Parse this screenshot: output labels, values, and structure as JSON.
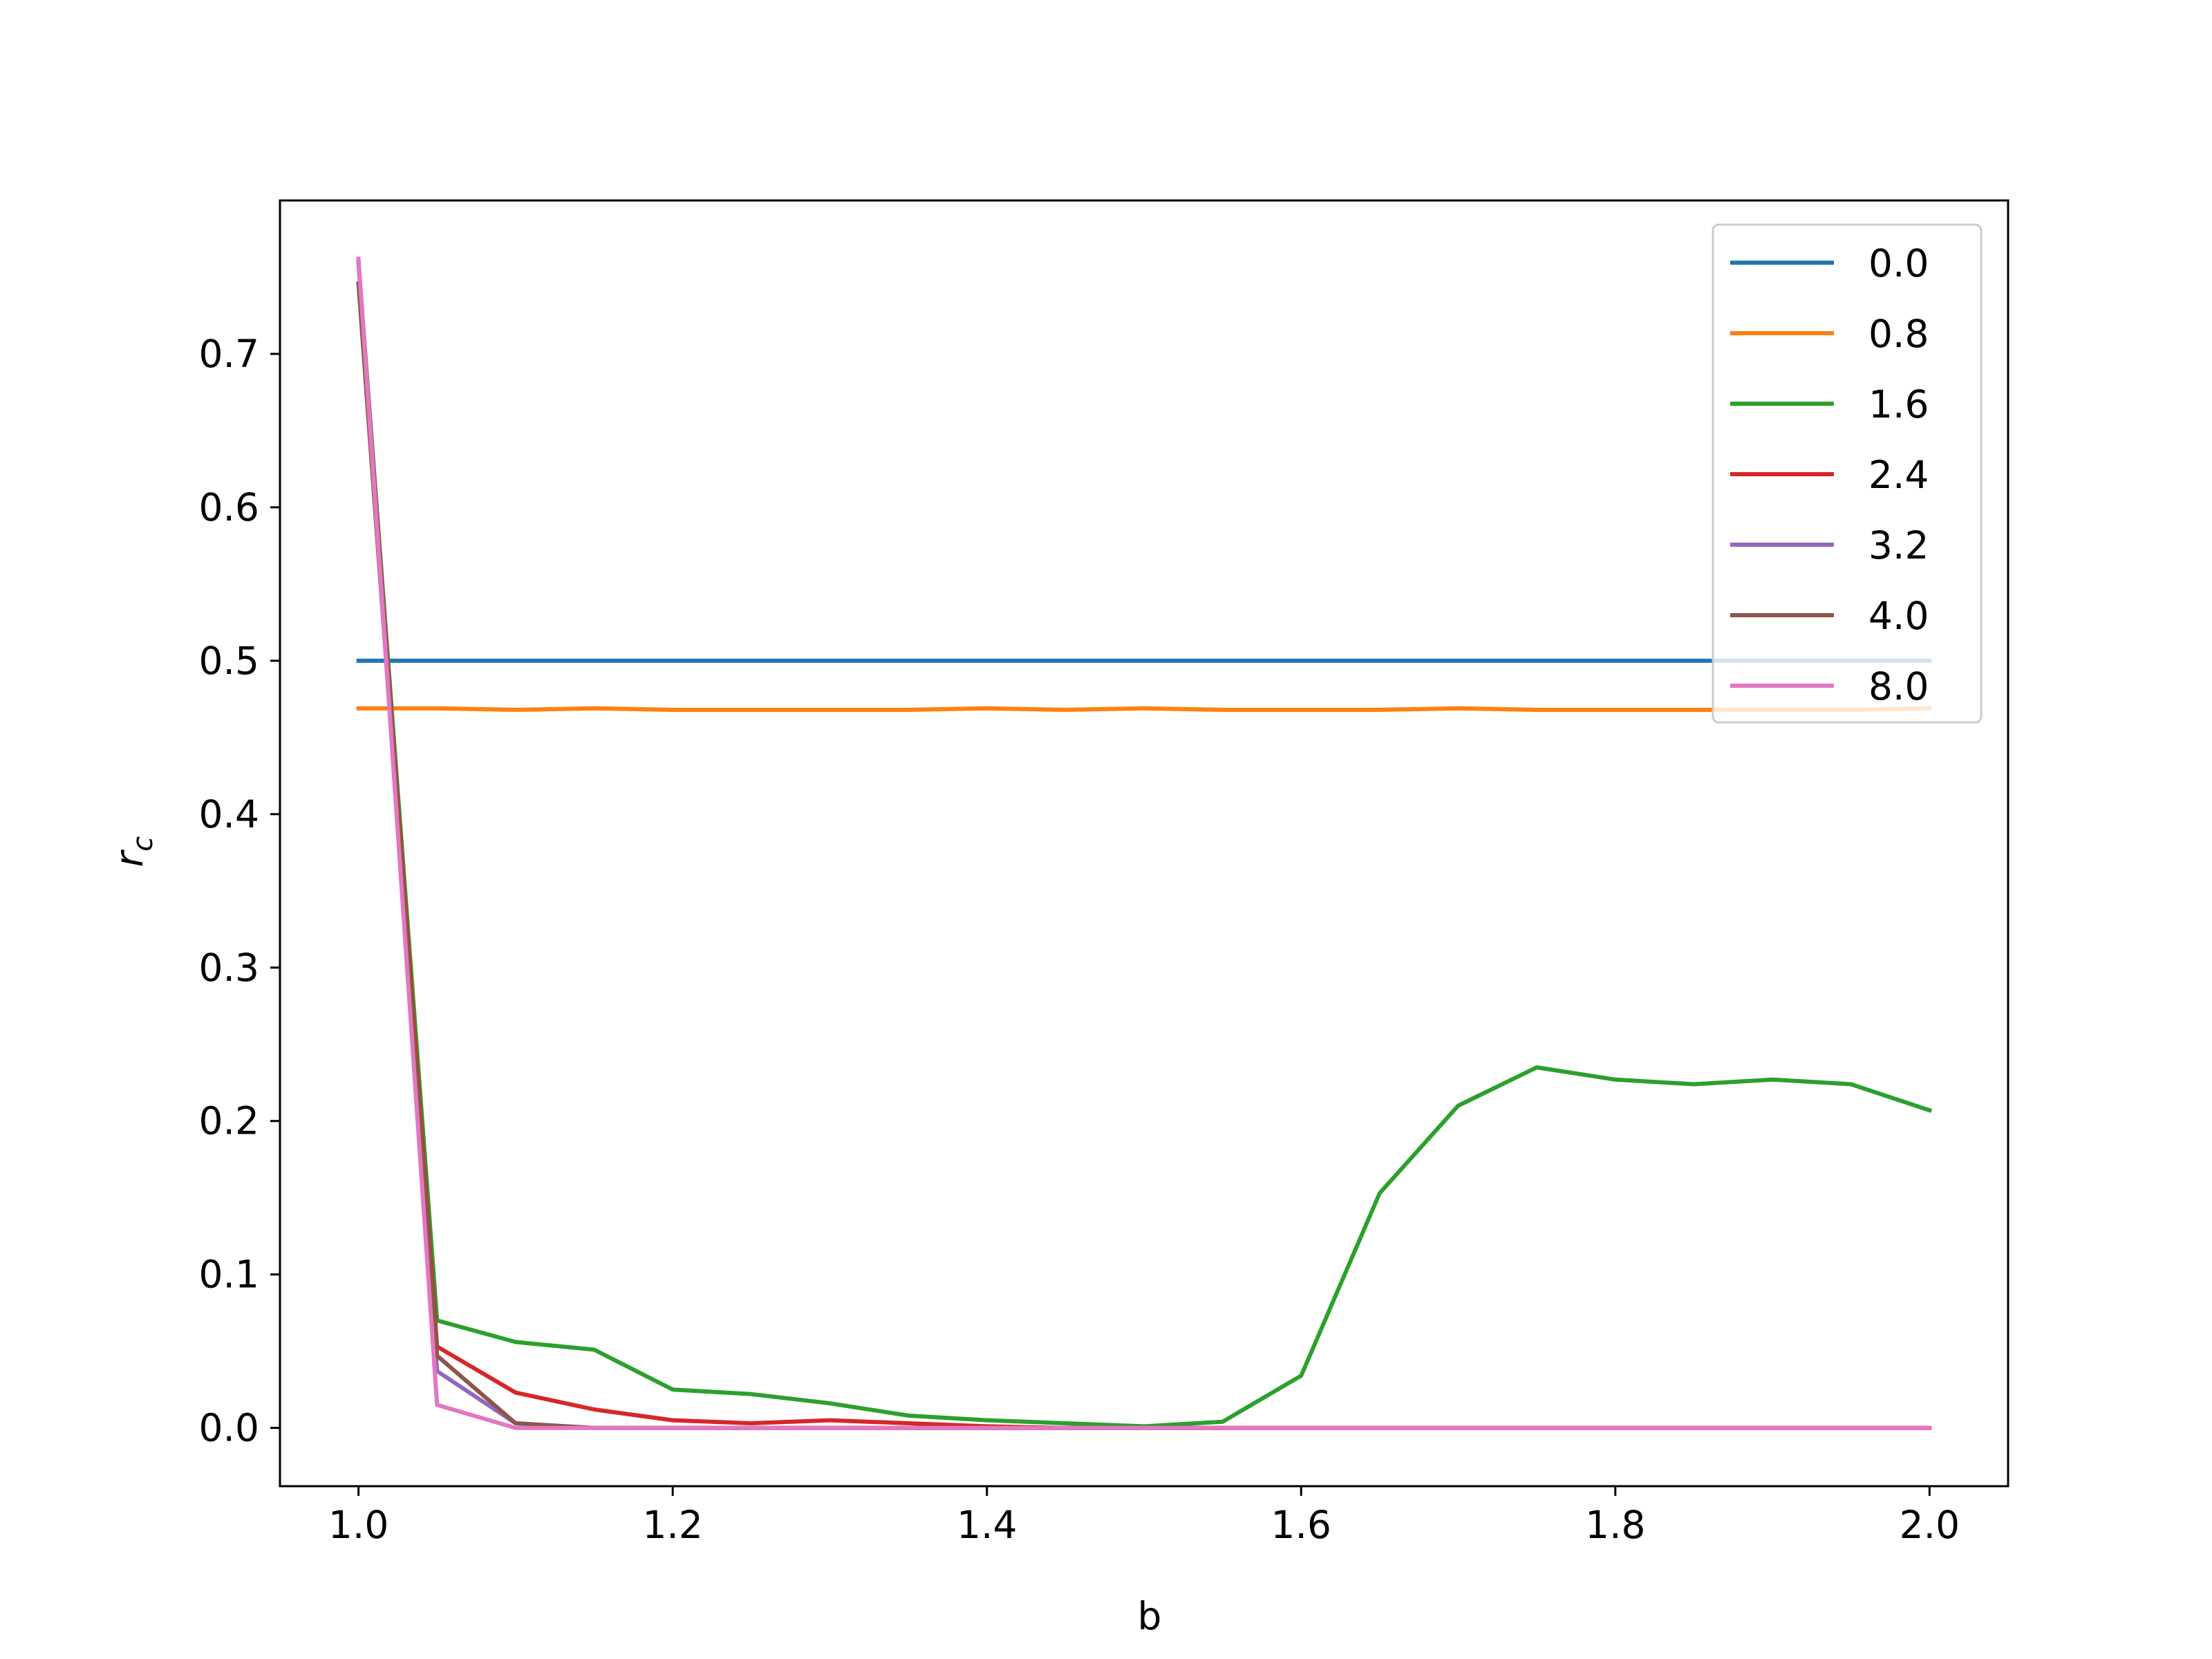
{
  "chart_data": {
    "type": "line",
    "title": "",
    "xlabel": "b",
    "ylabel_main": "r",
    "ylabel_sub": "c",
    "xlim": [
      0.95,
      2.05
    ],
    "ylim": [
      -0.038,
      0.8
    ],
    "xticks": [
      1.0,
      1.2,
      1.4,
      1.6,
      1.8,
      2.0
    ],
    "xtick_labels": [
      "1.0",
      "1.2",
      "1.4",
      "1.6",
      "1.8",
      "2.0"
    ],
    "yticks": [
      0.0,
      0.1,
      0.2,
      0.3,
      0.4,
      0.5,
      0.6,
      0.7
    ],
    "ytick_labels": [
      "0.0",
      "0.1",
      "0.2",
      "0.3",
      "0.4",
      "0.5",
      "0.6",
      "0.7"
    ],
    "grid": false,
    "legend_position": "upper-right",
    "x": [
      1.0,
      1.05,
      1.1,
      1.15,
      1.2,
      1.25,
      1.3,
      1.35,
      1.4,
      1.45,
      1.5,
      1.55,
      1.6,
      1.65,
      1.7,
      1.75,
      1.8,
      1.85,
      1.9,
      1.95,
      2.0
    ],
    "series": [
      {
        "name": "0.0",
        "color": "#1f77b4",
        "values": [
          0.5,
          0.5,
          0.5,
          0.5,
          0.5,
          0.5,
          0.5,
          0.5,
          0.5,
          0.5,
          0.5,
          0.5,
          0.5,
          0.5,
          0.5,
          0.5,
          0.5,
          0.5,
          0.5,
          0.5,
          0.5
        ]
      },
      {
        "name": "0.8",
        "color": "#ff7f0e",
        "values": [
          0.469,
          0.469,
          0.468,
          0.469,
          0.468,
          0.468,
          0.468,
          0.468,
          0.469,
          0.468,
          0.469,
          0.468,
          0.468,
          0.468,
          0.469,
          0.468,
          0.468,
          0.468,
          0.468,
          0.468,
          0.469
        ]
      },
      {
        "name": "1.6",
        "color": "#2ca02c",
        "values": [
          0.76,
          0.07,
          0.056,
          0.051,
          0.025,
          0.022,
          0.016,
          0.008,
          0.005,
          0.003,
          0.001,
          0.004,
          0.034,
          0.153,
          0.21,
          0.235,
          0.227,
          0.224,
          0.227,
          0.224,
          0.207
        ]
      },
      {
        "name": "2.4",
        "color": "#d62728",
        "values": [
          0.76,
          0.053,
          0.023,
          0.012,
          0.005,
          0.003,
          0.005,
          0.003,
          0.001,
          0.0,
          0.0,
          0.0,
          0.0,
          0.0,
          0.0,
          0.0,
          0.0,
          0.0,
          0.0,
          0.0,
          0.0
        ]
      },
      {
        "name": "3.2",
        "color": "#9467bd",
        "values": [
          0.76,
          0.037,
          0.003,
          0.0,
          0.0,
          0.0,
          0.0,
          0.0,
          0.0,
          0.0,
          0.0,
          0.0,
          0.0,
          0.0,
          0.0,
          0.0,
          0.0,
          0.0,
          0.0,
          0.0,
          0.0
        ]
      },
      {
        "name": "4.0",
        "color": "#8c564b",
        "values": [
          0.746,
          0.047,
          0.003,
          0.0,
          0.0,
          0.0,
          0.0,
          0.0,
          0.0,
          0.0,
          0.0,
          0.0,
          0.0,
          0.0,
          0.0,
          0.0,
          0.0,
          0.0,
          0.0,
          0.0,
          0.0
        ]
      },
      {
        "name": "8.0",
        "color": "#e377c2",
        "values": [
          0.762,
          0.015,
          0.0,
          0.0,
          0.0,
          0.0,
          0.0,
          0.0,
          0.0,
          0.0,
          0.0,
          0.0,
          0.0,
          0.0,
          0.0,
          0.0,
          0.0,
          0.0,
          0.0,
          0.0,
          0.0
        ]
      }
    ]
  }
}
